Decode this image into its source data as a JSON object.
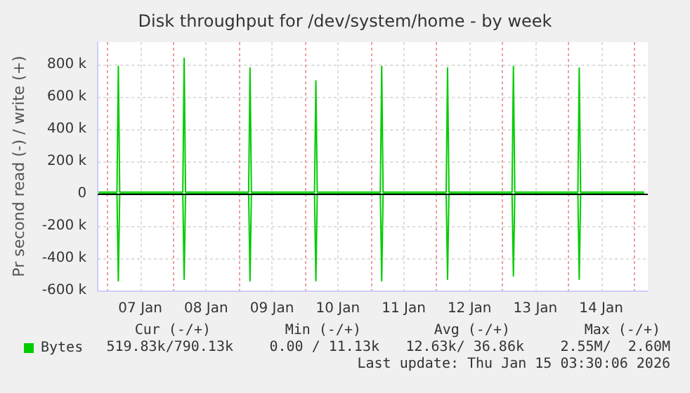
{
  "chart_data": {
    "type": "line",
    "title": "Disk throughput for /dev/system/home - by week",
    "ylabel": "Pr second read (-) / write (+)",
    "series": [
      {
        "name": "Bytes",
        "color": "#00cc00",
        "x": [
          "2026-01-06T21:00",
          "2026-01-07T03:30",
          "2026-01-07T04:00",
          "2026-01-07T04:30",
          "2026-01-08T03:30",
          "2026-01-08T04:00",
          "2026-01-08T04:30",
          "2026-01-09T03:30",
          "2026-01-09T04:00",
          "2026-01-09T04:30",
          "2026-01-10T03:30",
          "2026-01-10T04:00",
          "2026-01-10T04:30",
          "2026-01-11T03:30",
          "2026-01-11T04:00",
          "2026-01-11T04:30",
          "2026-01-12T03:30",
          "2026-01-12T04:00",
          "2026-01-12T04:30",
          "2026-01-13T03:30",
          "2026-01-13T04:00",
          "2026-01-13T04:30",
          "2026-01-14T03:30",
          "2026-01-14T04:00",
          "2026-01-14T04:30",
          "2026-01-15T03:30"
        ],
        "values": [
          10000,
          10000,
          790000,
          10000,
          10000,
          840000,
          10000,
          10000,
          780000,
          10000,
          10000,
          700000,
          10000,
          10000,
          790000,
          10000,
          10000,
          780000,
          10000,
          10000,
          790000,
          10000,
          10000,
          780000,
          10000,
          10000
        ]
      },
      {
        "color": "#00cc00",
        "x": [
          "2026-01-06T21:00",
          "2026-01-07T03:30",
          "2026-01-07T04:00",
          "2026-01-07T04:30",
          "2026-01-08T03:30",
          "2026-01-08T04:00",
          "2026-01-08T04:30",
          "2026-01-09T03:30",
          "2026-01-09T04:00",
          "2026-01-09T04:30",
          "2026-01-10T03:30",
          "2026-01-10T04:00",
          "2026-01-10T04:30",
          "2026-01-11T03:30",
          "2026-01-11T04:00",
          "2026-01-11T04:30",
          "2026-01-12T03:30",
          "2026-01-12T04:00",
          "2026-01-12T04:30",
          "2026-01-13T03:30",
          "2026-01-13T04:00",
          "2026-01-13T04:30",
          "2026-01-14T03:30",
          "2026-01-14T04:00",
          "2026-01-14T04:30",
          "2026-01-15T03:30"
        ],
        "values": [
          0,
          0,
          -540000,
          0,
          0,
          -530000,
          0,
          0,
          -540000,
          0,
          0,
          -540000,
          0,
          0,
          -540000,
          0,
          0,
          -530000,
          0,
          0,
          -510000,
          0,
          0,
          -530000,
          0,
          0
        ]
      }
    ],
    "xlim": [
      "2026-01-06T20:30",
      "2026-01-15T05:00"
    ],
    "xticks": [
      {
        "value": "2026-01-07T00:00",
        "label": null
      },
      {
        "value": "2026-01-07T12:00",
        "label": "07 Jan"
      },
      {
        "value": "2026-01-08T00:00",
        "label": null
      },
      {
        "value": "2026-01-08T12:00",
        "label": "08 Jan"
      },
      {
        "value": "2026-01-09T00:00",
        "label": null
      },
      {
        "value": "2026-01-09T12:00",
        "label": "09 Jan"
      },
      {
        "value": "2026-01-10T00:00",
        "label": null
      },
      {
        "value": "2026-01-10T12:00",
        "label": "10 Jan"
      },
      {
        "value": "2026-01-11T00:00",
        "label": null
      },
      {
        "value": "2026-01-11T12:00",
        "label": "11 Jan"
      },
      {
        "value": "2026-01-12T00:00",
        "label": null
      },
      {
        "value": "2026-01-12T12:00",
        "label": "12 Jan"
      },
      {
        "value": "2026-01-13T00:00",
        "label": null
      },
      {
        "value": "2026-01-13T12:00",
        "label": "13 Jan"
      },
      {
        "value": "2026-01-14T00:00",
        "label": null
      },
      {
        "value": "2026-01-14T12:00",
        "label": "14 Jan"
      },
      {
        "value": "2026-01-15T00:00",
        "label": null
      }
    ],
    "ylim": [
      -600000,
      940000
    ],
    "yticks": [
      {
        "value": -600000,
        "label": "-600 k"
      },
      {
        "value": -400000,
        "label": "-400 k"
      },
      {
        "value": -200000,
        "label": "-200 k"
      },
      {
        "value": 0,
        "label": "0"
      },
      {
        "value": 200000,
        "label": "200 k"
      },
      {
        "value": 400000,
        "label": "400 k"
      },
      {
        "value": 600000,
        "label": "600 k"
      },
      {
        "value": 800000,
        "label": "800 k"
      }
    ],
    "ref_lines": [
      {
        "axis": "y",
        "value": 0,
        "color": "#000000"
      }
    ],
    "grid": true,
    "legend": "bottom left",
    "marker": "none",
    "line_style": "solid",
    "annotations": [
      "Cur (-/+)",
      "Min (-/+)",
      "Avg (-/+)",
      "Max (-/+)",
      "519.83k/790.13k",
      "0.00 / 11.13k",
      "12.63k/ 36.86k",
      "2.55M/  2.60M",
      "Last update: Thu Jan 15 03:30:06 2026"
    ]
  }
}
